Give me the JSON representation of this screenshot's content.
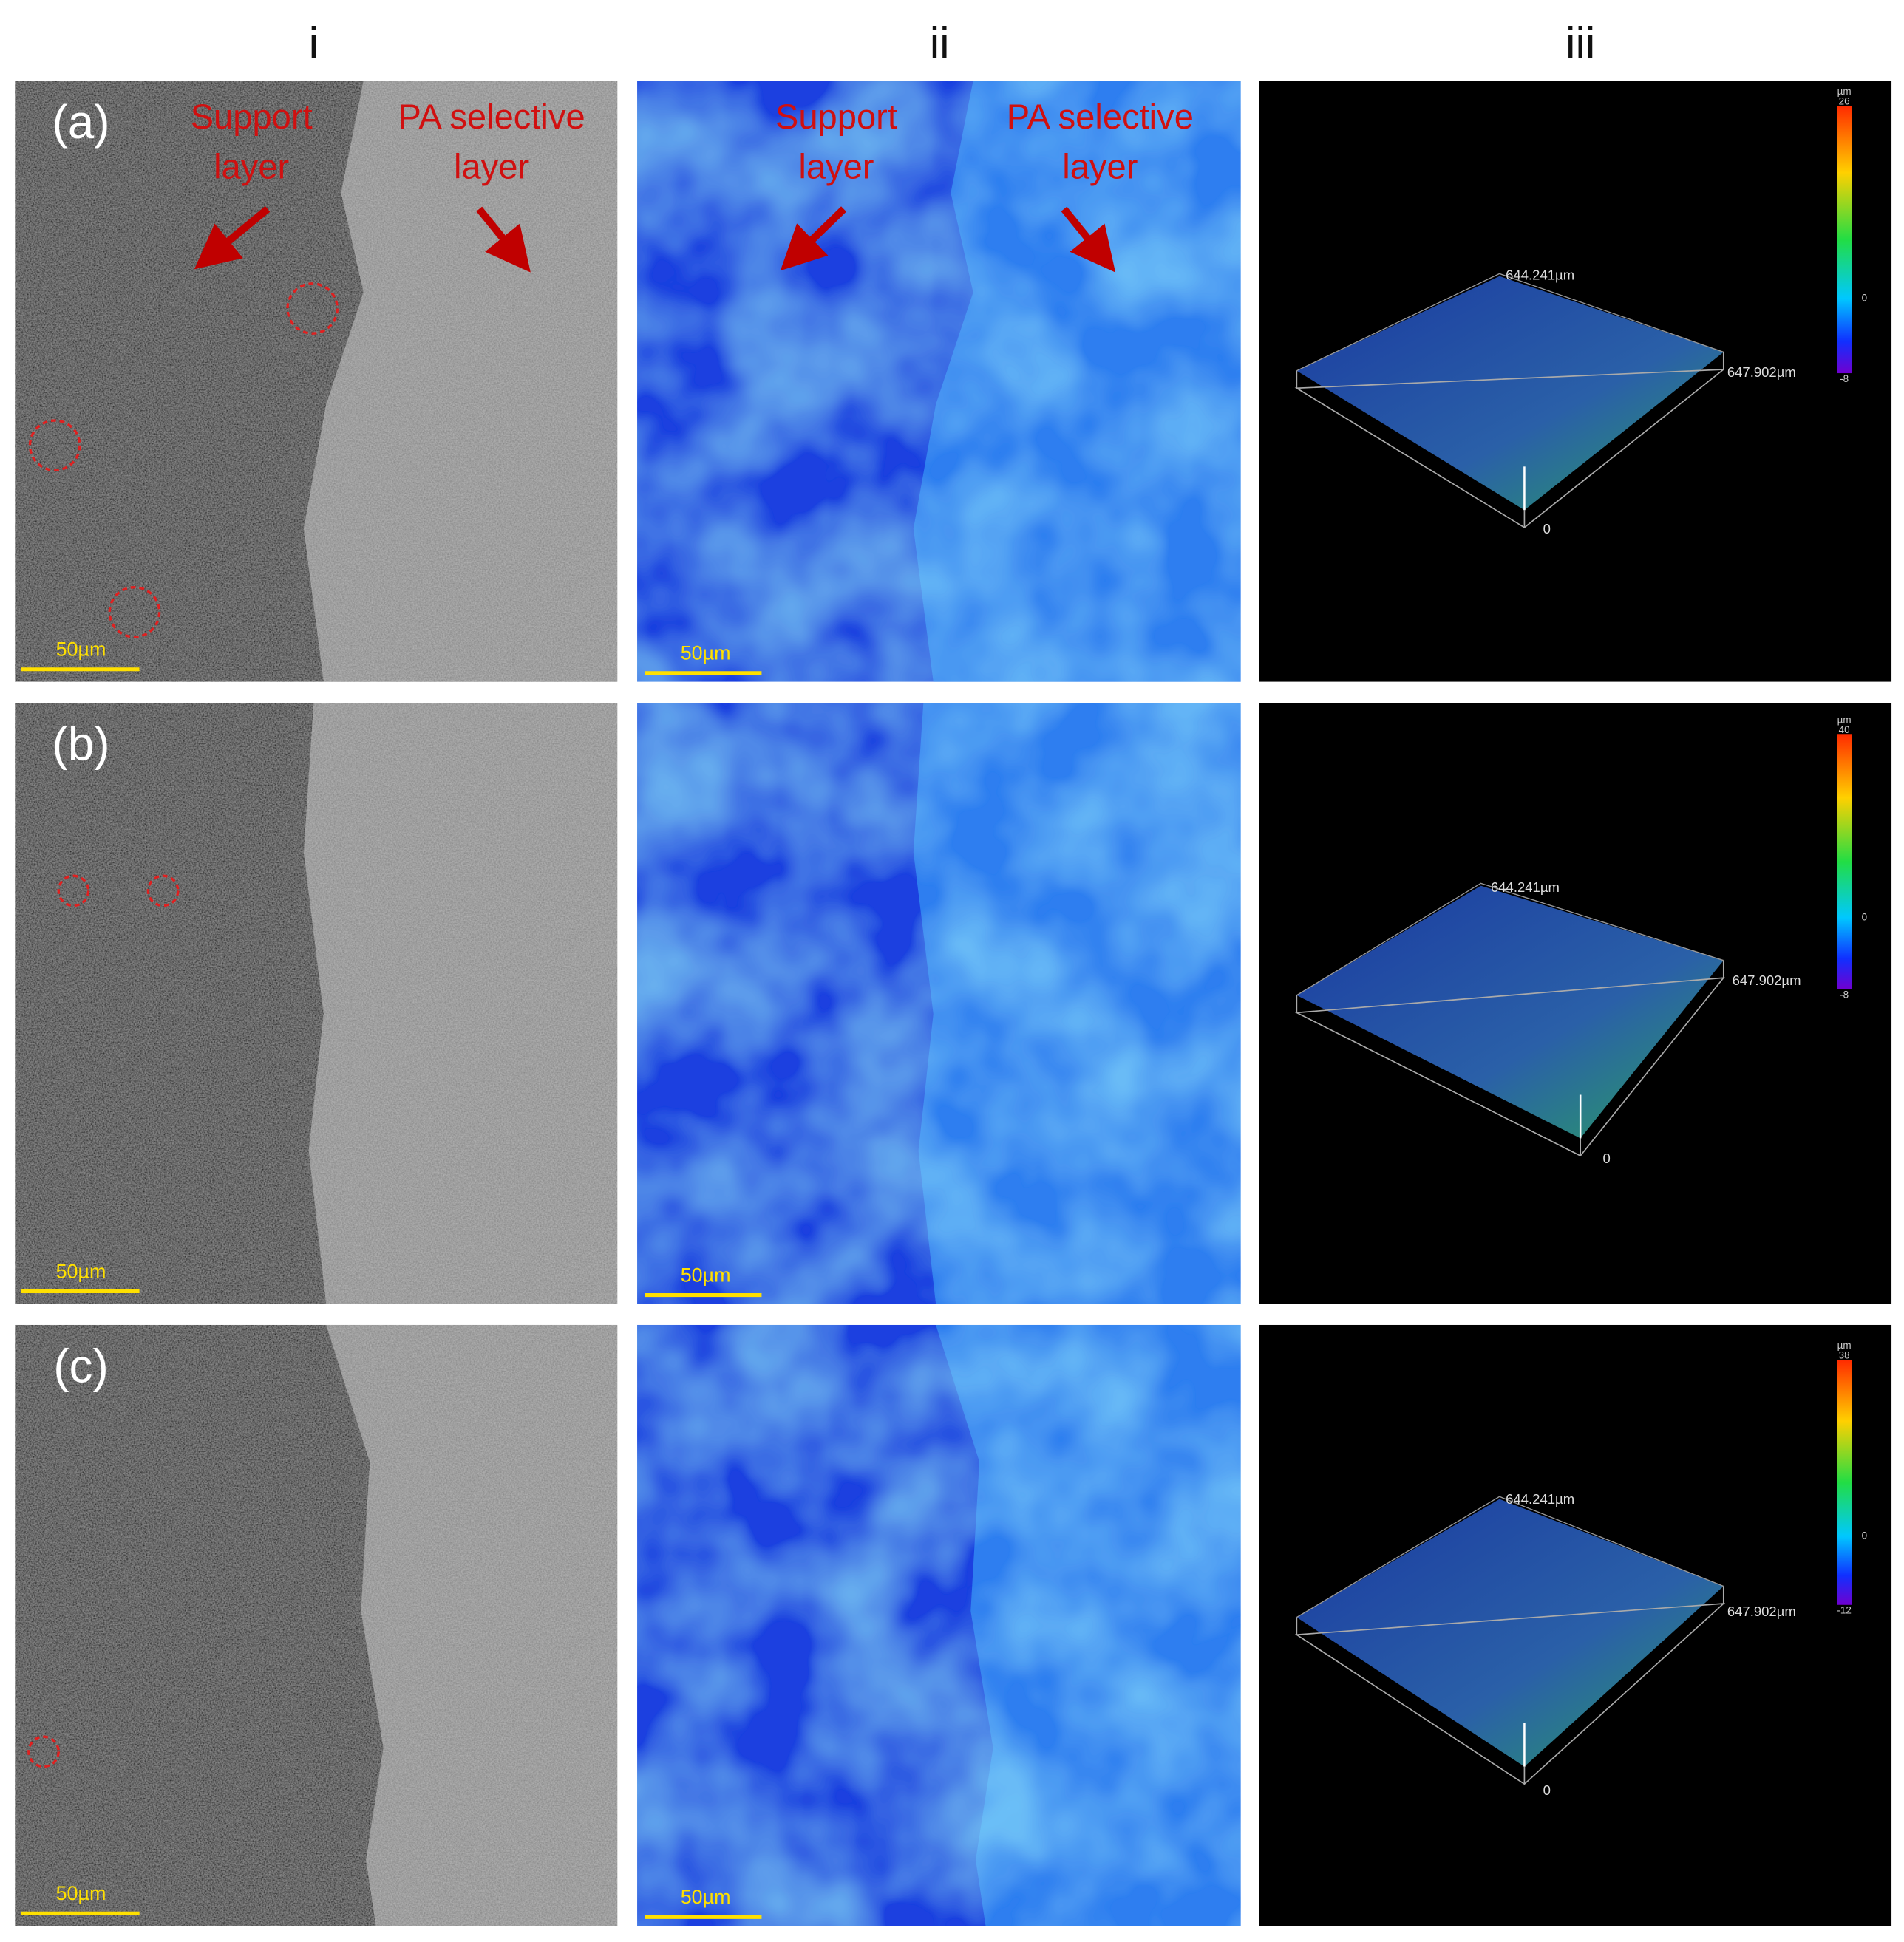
{
  "columns": [
    "i",
    "ii",
    "iii"
  ],
  "annotations": {
    "support_layer": [
      "Support",
      "layer"
    ],
    "pa_selective_layer": [
      "PA selective",
      "layer"
    ]
  },
  "rows": [
    {
      "label": "(a)",
      "scale_bar_sem": "50µm",
      "scale_bar_fluorescence": "50µm",
      "profile": {
        "y_length": "644.241µm",
        "x_length": "647.902µm",
        "origin": "0",
        "colorbar": {
          "unit": "µm",
          "max": 26,
          "zero": 0,
          "min": -8
        }
      }
    },
    {
      "label": "(b)",
      "scale_bar_sem": "50µm",
      "scale_bar_fluorescence": "50µm",
      "profile": {
        "y_length": "644.241µm",
        "x_length": "647.902µm",
        "origin": "0",
        "colorbar": {
          "unit": "µm",
          "max": 40,
          "zero": 0,
          "min": -8
        }
      }
    },
    {
      "label": "(c)",
      "scale_bar_sem": "50µm",
      "scale_bar_fluorescence": "50µm",
      "profile": {
        "y_length": "644.241µm",
        "x_length": "647.902µm",
        "origin": "0",
        "colorbar": {
          "unit": "µm",
          "max": 38,
          "zero": 0,
          "min": -12
        }
      }
    }
  ]
}
